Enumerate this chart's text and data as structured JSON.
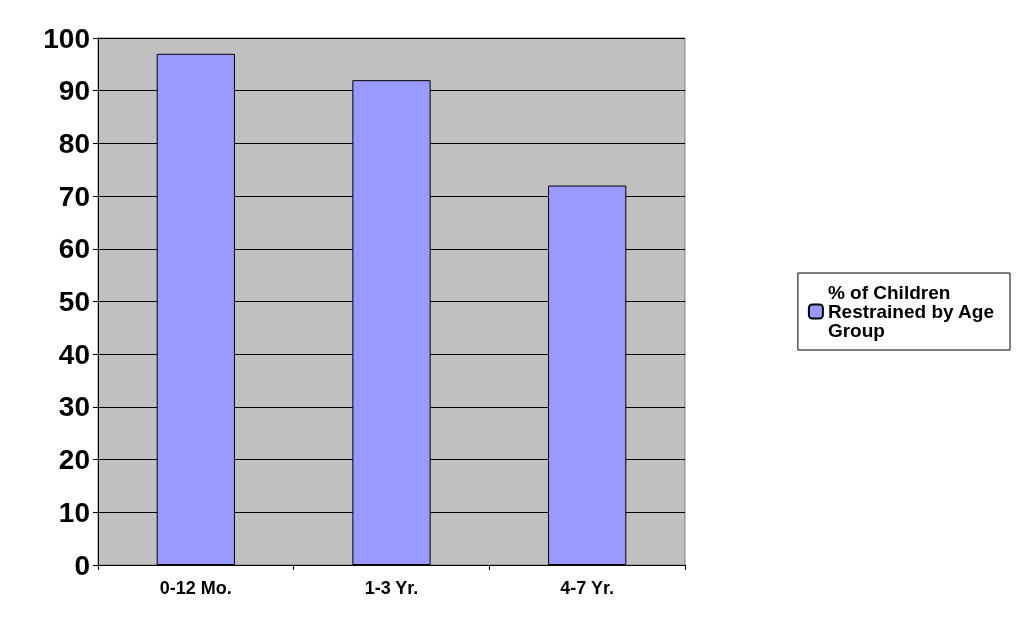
{
  "chart_data": {
    "type": "bar",
    "categories": [
      "0-12 Mo.",
      "1-3 Yr.",
      "4-7 Yr."
    ],
    "series": [
      {
        "name": "% of Children Restrained by Age Group",
        "color": "#9999ff",
        "values": [
          97,
          92,
          72
        ]
      }
    ],
    "ylim": [
      0,
      100
    ],
    "yticks": [
      0,
      10,
      20,
      30,
      40,
      50,
      60,
      70,
      80,
      90,
      100
    ],
    "grid": "y",
    "legend": "right"
  }
}
